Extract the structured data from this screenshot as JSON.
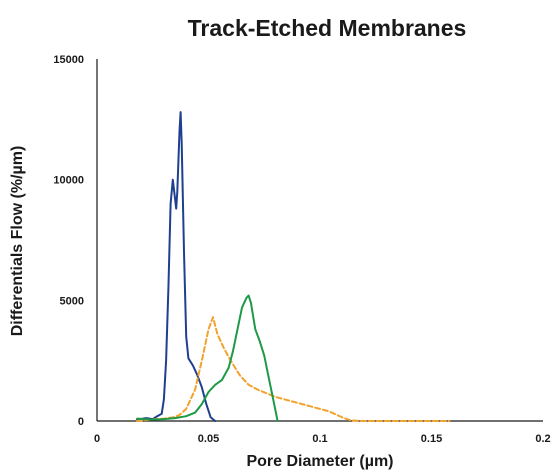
{
  "chart_data": {
    "type": "line",
    "title": "Track-Etched Membranes",
    "xlabel": "Pore Diameter (µm)",
    "ylabel": "Differentials Flow (%/µm)",
    "xlim": [
      0,
      0.2
    ],
    "ylim": [
      0,
      15000
    ],
    "x_ticks": [
      0,
      0.05,
      0.1,
      0.15,
      0.2
    ],
    "x_tick_labels": [
      "0",
      "0.05",
      "0.1",
      "0.15",
      "0.2"
    ],
    "y_ticks": [
      0,
      5000,
      10000,
      15000
    ],
    "y_tick_labels": [
      "0",
      "5000",
      "10000",
      "15000"
    ],
    "grid": false,
    "legend": "none",
    "series": [
      {
        "color": "#1f3f8f",
        "style": "solid",
        "points": [
          [
            0.018,
            60
          ],
          [
            0.022,
            120
          ],
          [
            0.025,
            80
          ],
          [
            0.027,
            200
          ],
          [
            0.029,
            300
          ],
          [
            0.03,
            900
          ],
          [
            0.031,
            2500
          ],
          [
            0.032,
            5500
          ],
          [
            0.033,
            9000
          ],
          [
            0.034,
            10000
          ],
          [
            0.035,
            9200
          ],
          [
            0.0355,
            8800
          ],
          [
            0.036,
            9500
          ],
          [
            0.037,
            12000
          ],
          [
            0.0375,
            12800
          ],
          [
            0.038,
            11500
          ],
          [
            0.039,
            7000
          ],
          [
            0.04,
            3500
          ],
          [
            0.041,
            2600
          ],
          [
            0.043,
            2300
          ],
          [
            0.045,
            1900
          ],
          [
            0.047,
            1400
          ],
          [
            0.049,
            700
          ],
          [
            0.051,
            150
          ],
          [
            0.053,
            0
          ]
        ]
      },
      {
        "color": "#f2a22e",
        "style": "dashed",
        "points": [
          [
            0.018,
            0
          ],
          [
            0.024,
            60
          ],
          [
            0.03,
            100
          ],
          [
            0.034,
            150
          ],
          [
            0.037,
            250
          ],
          [
            0.04,
            500
          ],
          [
            0.044,
            1300
          ],
          [
            0.047,
            2500
          ],
          [
            0.05,
            3800
          ],
          [
            0.052,
            4300
          ],
          [
            0.054,
            3600
          ],
          [
            0.057,
            3000
          ],
          [
            0.06,
            2500
          ],
          [
            0.064,
            1900
          ],
          [
            0.068,
            1500
          ],
          [
            0.072,
            1300
          ],
          [
            0.076,
            1150
          ],
          [
            0.08,
            1000
          ],
          [
            0.086,
            850
          ],
          [
            0.092,
            700
          ],
          [
            0.098,
            550
          ],
          [
            0.104,
            400
          ],
          [
            0.11,
            150
          ],
          [
            0.114,
            20
          ],
          [
            0.12,
            0
          ],
          [
            0.158,
            0
          ]
        ]
      },
      {
        "color": "#1e9a46",
        "style": "solid",
        "points": [
          [
            0.018,
            100
          ],
          [
            0.025,
            60
          ],
          [
            0.03,
            80
          ],
          [
            0.035,
            120
          ],
          [
            0.04,
            200
          ],
          [
            0.044,
            350
          ],
          [
            0.047,
            700
          ],
          [
            0.05,
            1200
          ],
          [
            0.053,
            1500
          ],
          [
            0.056,
            1700
          ],
          [
            0.059,
            2200
          ],
          [
            0.061,
            2900
          ],
          [
            0.063,
            3800
          ],
          [
            0.065,
            4700
          ],
          [
            0.067,
            5100
          ],
          [
            0.068,
            5200
          ],
          [
            0.069,
            4900
          ],
          [
            0.071,
            3800
          ],
          [
            0.073,
            3300
          ],
          [
            0.075,
            2700
          ],
          [
            0.077,
            1800
          ],
          [
            0.079,
            900
          ],
          [
            0.081,
            0
          ]
        ]
      }
    ]
  }
}
